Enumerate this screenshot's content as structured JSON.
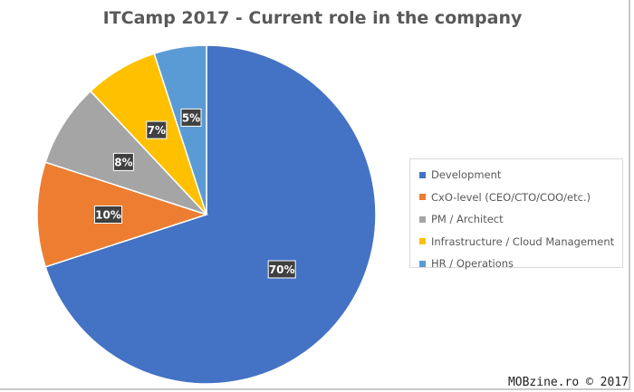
{
  "chart_data": {
    "type": "pie",
    "title": "ITCamp 2017 - Current role in the company",
    "categories": [
      "Development",
      "CxO-level (CEO/CTO/COO/etc.)",
      "PM / Architect",
      "Infrastructure / Cloud Management",
      "HR / Operations"
    ],
    "values": [
      70,
      10,
      8,
      7,
      5
    ],
    "data_labels": [
      "70%",
      "10%",
      "8%",
      "7%",
      "5%"
    ],
    "colors": [
      "#4472C4",
      "#ED7D31",
      "#A5A5A5",
      "#FFC000",
      "#5B9BD5"
    ],
    "start_angle_deg": 0,
    "direction": "clockwise",
    "legend_position": "right"
  },
  "watermark": "MOBzine.ro © 2017"
}
